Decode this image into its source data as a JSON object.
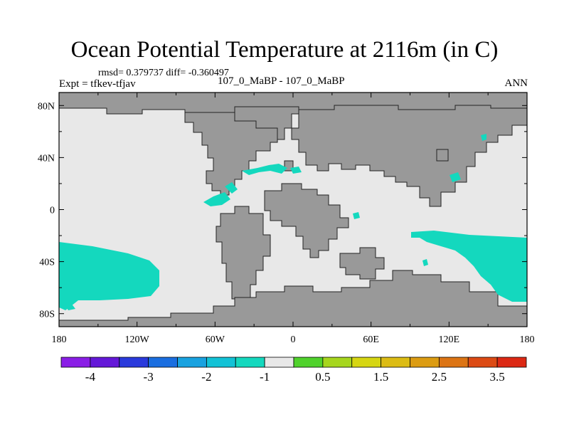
{
  "title": "Ocean Potential Temperature at 2116m (in C)",
  "stats": "rmsd= 0.379737 diff= -0.360497",
  "experiment": "Expt = tfkev-tfjav",
  "case": "107_0_MaBP - 107_0_MaBP",
  "season": "ANN",
  "axes": {
    "x_ticks": [
      "180",
      "120W",
      "60W",
      "0",
      "60E",
      "120E",
      "180"
    ],
    "y_ticks": [
      "80N",
      "40N",
      "0",
      "40S",
      "80S"
    ]
  },
  "colorbar": {
    "colors": [
      "#8a1ee6",
      "#6418d8",
      "#2a3adc",
      "#1a6ee0",
      "#19a2e0",
      "#12c2d6",
      "#14d8be",
      "#e8e8e8",
      "#50d22c",
      "#a6d61e",
      "#d6d612",
      "#dcbc14",
      "#dc9c12",
      "#dc7414",
      "#dc4a14",
      "#dc2814"
    ],
    "labels": [
      "-4",
      "-3",
      "-2",
      "-1",
      "0.5",
      "1.5",
      "2.5",
      "3.5"
    ]
  },
  "colors": {
    "land": "#999999",
    "ocean": "#e8e8e8",
    "anomaly": "#14d8be"
  }
}
